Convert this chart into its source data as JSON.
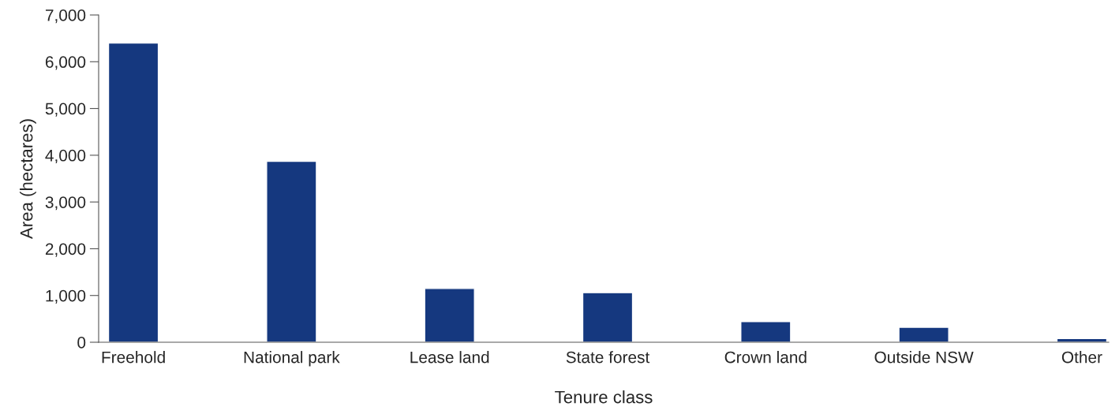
{
  "chart_data": {
    "type": "bar",
    "categories": [
      "Freehold",
      "National park",
      "Lease land",
      "State forest",
      "Crown land",
      "Outside NSW",
      "Other"
    ],
    "values": [
      6400,
      3870,
      1150,
      1060,
      440,
      320,
      80
    ],
    "color": "#15387f",
    "xlabel": "Tenure class",
    "ylabel": "Area (hectares)",
    "ylim": [
      0,
      7000
    ],
    "yticks": [
      {
        "value": 0,
        "label": "0"
      },
      {
        "value": 1000,
        "label": "1,000"
      },
      {
        "value": 2000,
        "label": "2,000"
      },
      {
        "value": 3000,
        "label": "3,000"
      },
      {
        "value": 4000,
        "label": "4,000"
      },
      {
        "value": 5000,
        "label": "5,000"
      },
      {
        "value": 6000,
        "label": "6,000"
      },
      {
        "value": 7000,
        "label": "7,000"
      }
    ],
    "grid": false,
    "legend": false
  }
}
